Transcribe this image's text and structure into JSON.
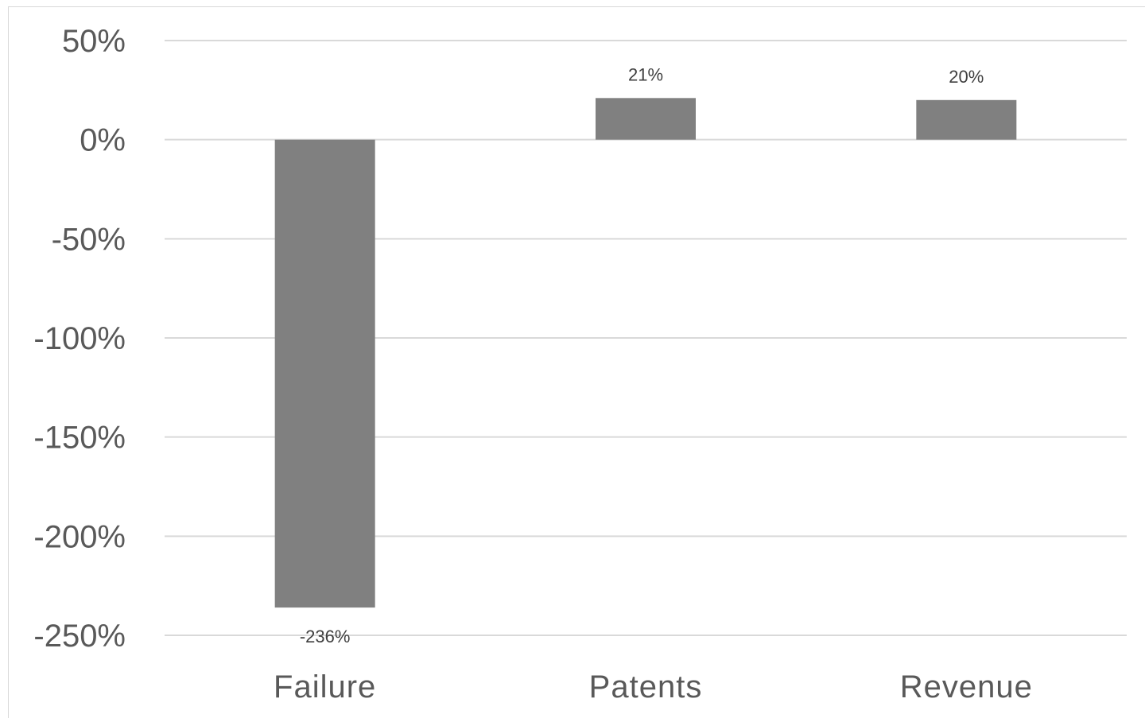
{
  "chart_data": {
    "type": "bar",
    "categories": [
      "Failure",
      "Patents",
      "Revenue"
    ],
    "values": [
      -236,
      21,
      20
    ],
    "data_labels": [
      "-236%",
      "21%",
      "20%"
    ],
    "ylim": [
      -250,
      50
    ],
    "yticks": [
      50,
      0,
      -50,
      -100,
      -150,
      -200,
      -250
    ],
    "ytick_labels": [
      "50%",
      "0%",
      "-50%",
      "-100%",
      "-150%",
      "-200%",
      "-250%"
    ],
    "grid": true,
    "legend": "none",
    "bar_color": "#808080",
    "grid_color": "#d9d9d9"
  }
}
